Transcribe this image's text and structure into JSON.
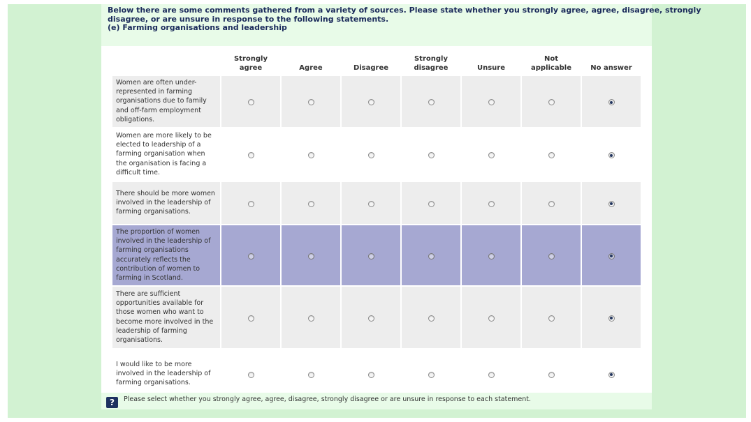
{
  "question": {
    "lines": [
      "Below there are some comments gathered from a variety of sources. Please state whether you strongly agree, agree, disagree, strongly",
      "disagree, or are unsure in response to the following statements.",
      "(e) Farming organisations and leadership"
    ]
  },
  "columns": [
    {
      "line1": "Strongly",
      "line2": "agree"
    },
    {
      "line1": "",
      "line2": "Agree"
    },
    {
      "line1": "",
      "line2": "Disagree"
    },
    {
      "line1": "Strongly",
      "line2": "disagree"
    },
    {
      "line1": "",
      "line2": "Unsure"
    },
    {
      "line1": "Not",
      "line2": "applicable"
    },
    {
      "line1": "",
      "line2": "No answer"
    }
  ],
  "rows": [
    {
      "statement": "Women are often under-represented in farming organisations due to family and off-farm employment obligations.",
      "selected": 6
    },
    {
      "statement": "Women are more likely to be elected to leadership of a farming organisation when the organisation is facing a difficult time.",
      "selected": 6
    },
    {
      "statement": "There should be more women involved in the leadership of farming organisations.",
      "selected": 6
    },
    {
      "statement": "The proportion of women involved in the leadership of farming organisations accurately reflects the contribution of women to farming in Scotland.",
      "selected": 6,
      "highlighted": true
    },
    {
      "statement": "There are sufficient opportunities available for those women who want to become more involved in the leadership of farming organisations.",
      "selected": 6
    },
    {
      "statement": "I would like to be more involved in the leadership of farming organisations.",
      "selected": 6
    }
  ],
  "help": {
    "icon": "question-mark-icon",
    "icon_glyph": "?",
    "text": "Please select whether you strongly agree, agree, disagree, strongly disagree or are unsure in response to each statement."
  },
  "colors": {
    "page_green": "#d2f2d2",
    "panel_green": "#e8fbe8",
    "row_alt": "#ededed",
    "row_highlight": "#a6a8d2",
    "heading_navy": "#1a2a5a"
  }
}
